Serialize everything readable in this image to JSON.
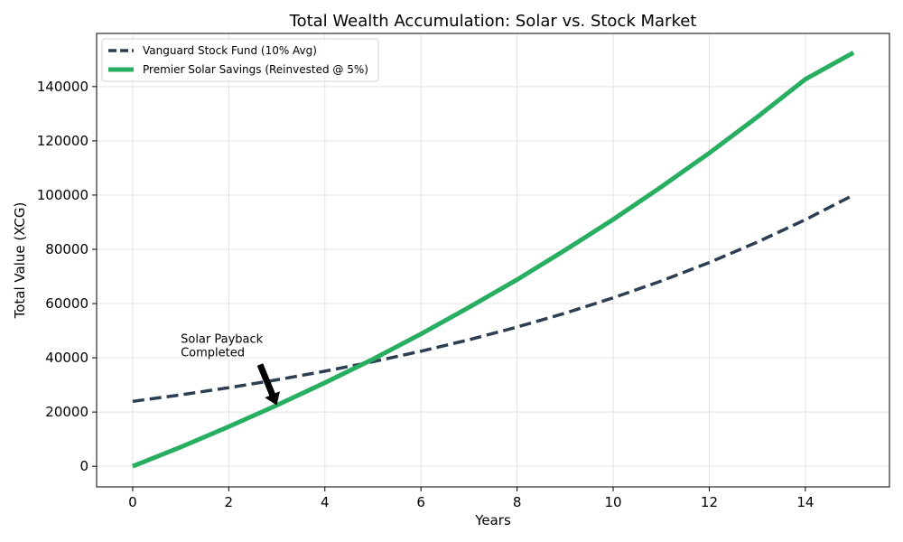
{
  "chart_data": {
    "type": "line",
    "title": "Total Wealth Accumulation: Solar vs. Stock Market",
    "xlabel": "Years",
    "ylabel": "Total Value (XCG)",
    "xlim": [
      -0.75,
      15.75
    ],
    "ylim": [
      -7600,
      159600
    ],
    "x_ticks": [
      0,
      2,
      4,
      6,
      8,
      10,
      12,
      14
    ],
    "y_ticks": [
      0,
      20000,
      40000,
      60000,
      80000,
      100000,
      120000,
      140000
    ],
    "grid": true,
    "legend_position": "top-left",
    "x": [
      0,
      1,
      2,
      3,
      4,
      5,
      6,
      7,
      8,
      9,
      10,
      11,
      12,
      13,
      14,
      15
    ],
    "series": [
      {
        "name": "Vanguard Stock Fund (10% Avg)",
        "color": "#2c3e50",
        "style": "dashed",
        "values": [
          23940,
          26334,
          28967,
          31864,
          35051,
          38556,
          42411,
          46652,
          51318,
          56450,
          62095,
          68304,
          75134,
          82648,
          90913,
          100004
        ]
      },
      {
        "name": "Premier Solar Savings (Reinvested @ 5%)",
        "color": "#27ae60",
        "style": "solid",
        "values": [
          0,
          7100,
          14600,
          22500,
          30800,
          39500,
          48800,
          58600,
          68800,
          79700,
          91000,
          103000,
          115500,
          128800,
          142700,
          152500
        ]
      }
    ],
    "annotations": [
      {
        "text_lines": [
          "Solar Payback",
          "Completed"
        ],
        "text_x": 1.0,
        "text_y": 40500,
        "arrow_from_x": 2.65,
        "arrow_from_y": 37500,
        "arrow_to_x": 3.0,
        "arrow_to_y": 22500
      }
    ]
  }
}
